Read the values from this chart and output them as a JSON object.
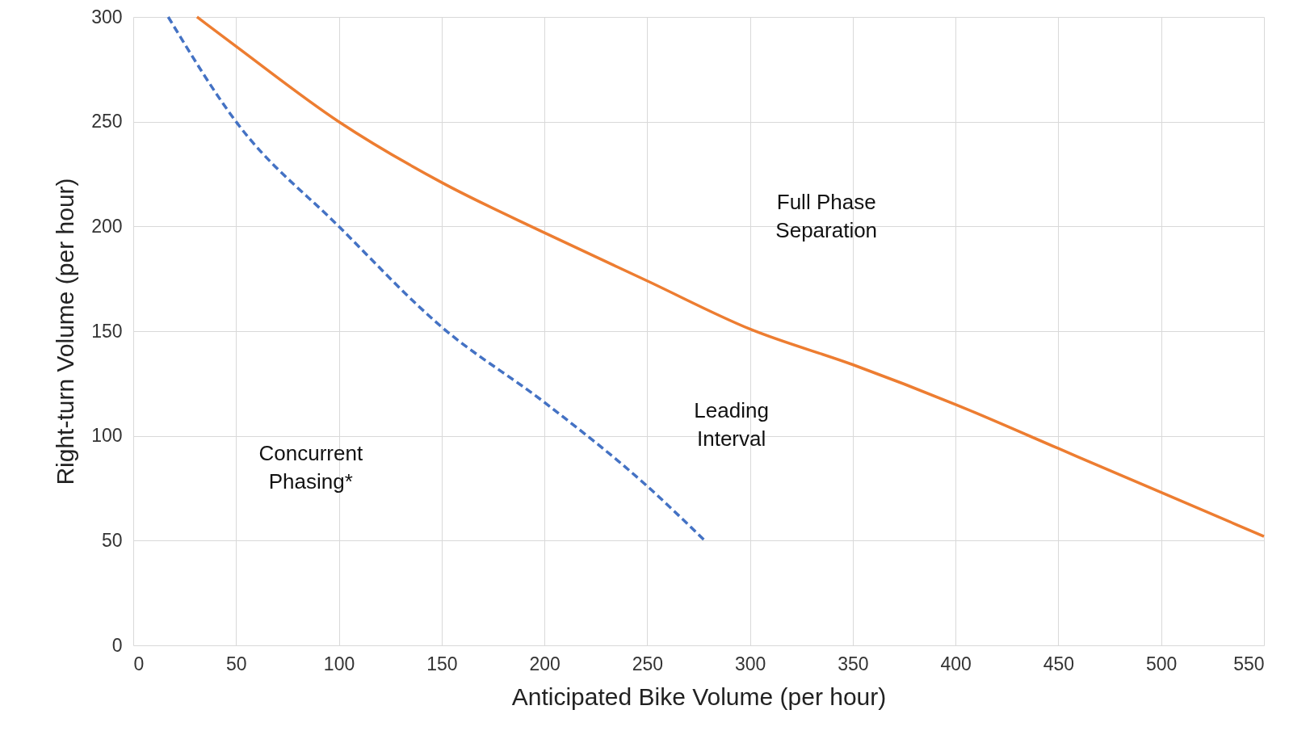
{
  "chart_data": {
    "type": "line",
    "xlabel": "Anticipated Bike Volume (per hour)",
    "ylabel": "Right-turn Volume (per hour)",
    "xlim": [
      0,
      550
    ],
    "xticks": [
      0,
      50,
      100,
      150,
      200,
      250,
      300,
      350,
      400,
      450,
      500,
      550
    ],
    "ylim": [
      0,
      300
    ],
    "yticks": [
      0,
      50,
      100,
      150,
      200,
      250,
      300
    ],
    "grid": true,
    "marker": "none",
    "series": [
      {
        "color": "#ed7d31",
        "line_style": "solid",
        "x": [
          31,
          50,
          100,
          150,
          200,
          250,
          300,
          350,
          400,
          450,
          500,
          550
        ],
        "values": [
          300,
          286,
          250,
          221,
          197,
          174,
          151,
          134,
          115,
          94,
          73,
          52
        ]
      },
      {
        "color": "#4472c4",
        "line_style": "dashed",
        "x": [
          17,
          50,
          100,
          150,
          200,
          250,
          278
        ],
        "values": [
          300,
          250,
          200,
          152,
          116,
          76,
          50
        ]
      }
    ],
    "annotations": [
      "Full Phase\nSeparation",
      "Leading\nInterval",
      "Concurrent\nPhasing*"
    ]
  }
}
